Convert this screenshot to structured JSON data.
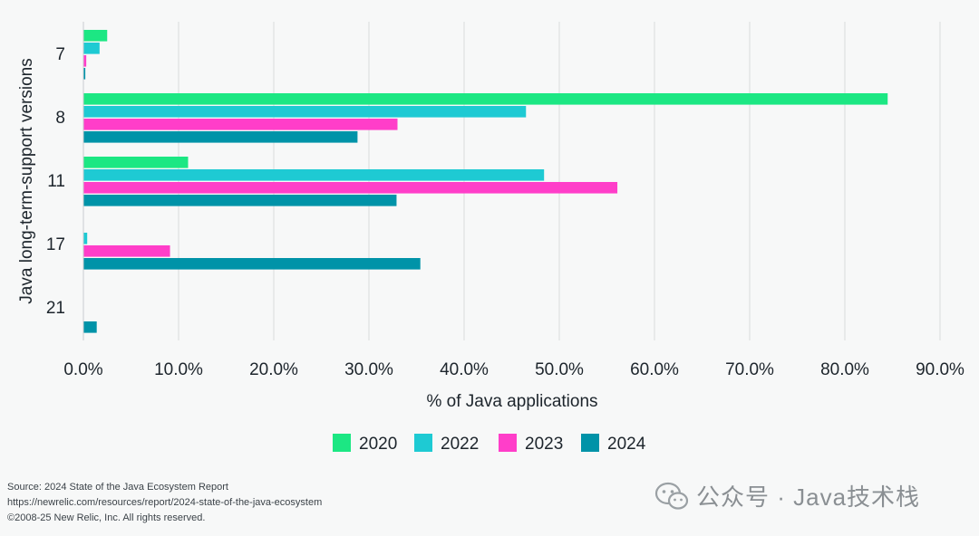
{
  "chart_data": {
    "type": "bar",
    "orientation": "horizontal",
    "categories": [
      "7",
      "8",
      "11",
      "17",
      "21"
    ],
    "series": [
      {
        "name": "2020",
        "color": "#1ce783",
        "values": [
          2.5,
          84.5,
          11.0,
          0.0,
          0.0
        ]
      },
      {
        "name": "2022",
        "color": "#1ecad3",
        "values": [
          1.7,
          46.5,
          48.4,
          0.4,
          0.0
        ]
      },
      {
        "name": "2023",
        "color": "#ff3ec9",
        "values": [
          0.3,
          33.0,
          56.1,
          9.1,
          0.0
        ]
      },
      {
        "name": "2024",
        "color": "#0093a8",
        "values": [
          0.2,
          28.8,
          32.9,
          35.4,
          1.4
        ]
      }
    ],
    "xlabel": "% of Java applications",
    "ylabel": "Java long-term-support versions",
    "xlim": [
      0,
      90
    ],
    "xticks": [
      "0.0%",
      "10.0%",
      "20.0%",
      "30.0%",
      "40.0%",
      "50.0%",
      "60.0%",
      "70.0%",
      "80.0%",
      "90.0%"
    ],
    "grid": true,
    "legend_position": "bottom-center"
  },
  "footer": {
    "source": "Source: 2024 State of the Java Ecosystem Report",
    "url": "https://newrelic.com/resources/report/2024-state-of-the-java-ecosystem",
    "copyright": "©2008-25 New Relic, Inc. All rights reserved."
  },
  "watermark": {
    "text": "公众号 · Java技术栈",
    "icon": "wechat-icon"
  }
}
